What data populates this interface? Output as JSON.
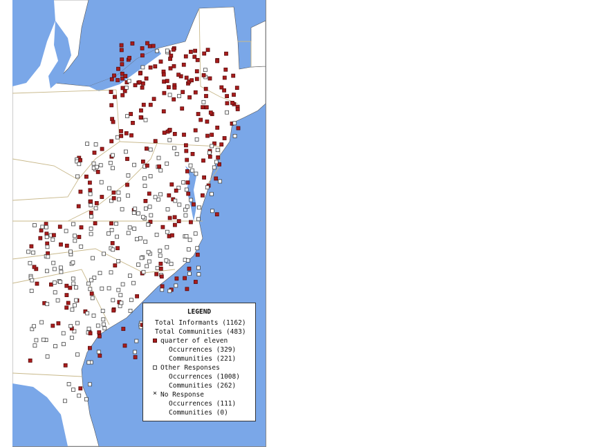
{
  "legend": {
    "title": "LEGEND",
    "total_informants": "Total Informants (1162)",
    "total_communities": "Total Communities (483)",
    "category_1": {
      "label": "quarter of eleven",
      "occurrences": "Occurrences (329)",
      "communities": "Communities (221)",
      "color": "#a81c1c",
      "symbol": "filled-square"
    },
    "category_2": {
      "label": "Other Responses",
      "occurrences": "Occurrences (1008)",
      "communities": "Communities (262)",
      "symbol": "open-square"
    },
    "category_3": {
      "label": "No Response",
      "occurrences": "Occurrences (111)",
      "communities": "Communities (0)",
      "symbol": "x"
    }
  },
  "colors": {
    "water": "#7aa7e8",
    "land": "#ffffff",
    "border": "#c8b88a",
    "marker_red": "#a81c1c"
  }
}
